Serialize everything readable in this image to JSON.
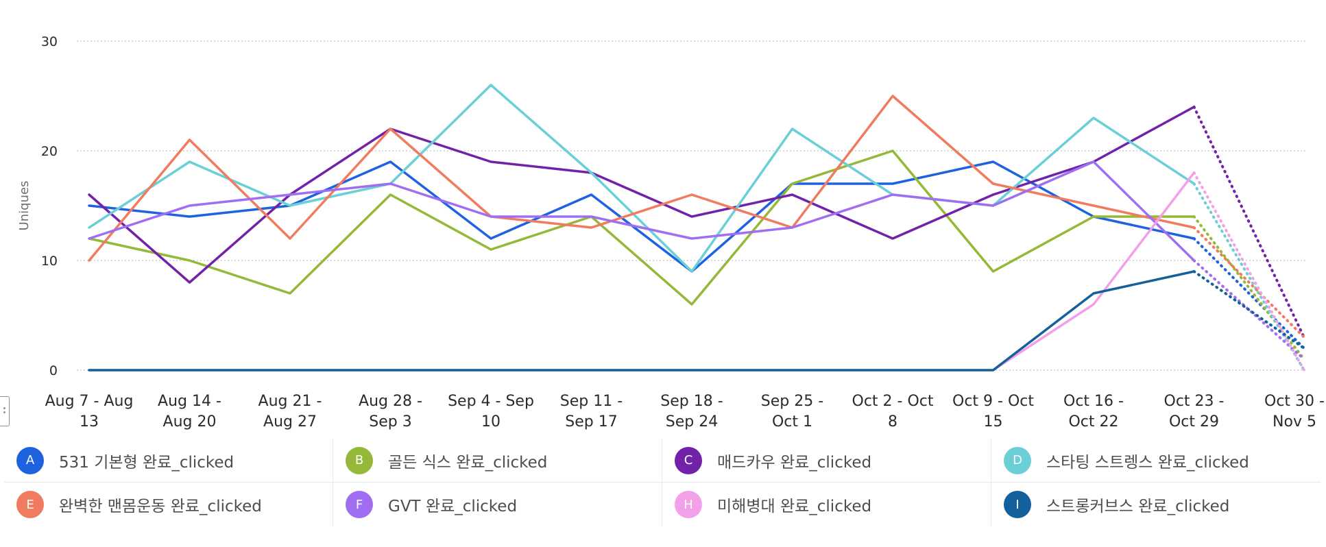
{
  "chart_data": {
    "type": "line",
    "ylabel": "Uniques",
    "ylim": [
      0,
      30
    ],
    "yticks": [
      "0",
      "10",
      "20",
      "30"
    ],
    "grid": true,
    "legend_position": "bottom",
    "categories": [
      [
        "Aug 7 - Aug",
        "13"
      ],
      [
        "Aug 14 -",
        "Aug 20"
      ],
      [
        "Aug 21 -",
        "Aug 27"
      ],
      [
        "Aug 28 -",
        "Sep 3"
      ],
      [
        "Sep 4 - Sep",
        "10"
      ],
      [
        "Sep 11 -",
        "Sep 17"
      ],
      [
        "Sep 18 -",
        "Sep 24"
      ],
      [
        "Sep 25 -",
        "Oct 1"
      ],
      [
        "Oct 2 - Oct",
        "8"
      ],
      [
        "Oct 9 - Oct",
        "15"
      ],
      [
        "Oct 16 -",
        "Oct 22"
      ],
      [
        "Oct 23 -",
        "Oct 29"
      ],
      [
        "Oct 30 -",
        "Nov 5"
      ]
    ],
    "partial_last_period": true,
    "series": [
      {
        "badge": "A",
        "name": "531 기본형 완료_clicked",
        "color": "#1f62e0",
        "values": [
          15,
          14,
          15,
          19,
          12,
          16,
          9,
          17,
          17,
          19,
          14,
          12,
          2
        ]
      },
      {
        "badge": "B",
        "name": "골든 식스 완료_clicked",
        "color": "#94b837",
        "values": [
          12,
          10,
          7,
          16,
          11,
          14,
          6,
          17,
          20,
          9,
          14,
          14,
          1
        ]
      },
      {
        "badge": "C",
        "name": "매드카우 완료_clicked",
        "color": "#7222a8",
        "values": [
          16,
          8,
          16,
          22,
          19,
          18,
          14,
          16,
          12,
          16,
          19,
          24,
          3
        ]
      },
      {
        "badge": "D",
        "name": "스타팅 스트렝스 완료_clicked",
        "color": "#6acfd6",
        "values": [
          13,
          19,
          15,
          17,
          26,
          18,
          9,
          22,
          16,
          15,
          23,
          17,
          0
        ]
      },
      {
        "badge": "E",
        "name": "완벽한 맨몸운동 완료_clicked",
        "color": "#f07b5e",
        "values": [
          10,
          21,
          12,
          22,
          14,
          13,
          16,
          13,
          25,
          17,
          15,
          13,
          3
        ]
      },
      {
        "badge": "F",
        "name": "GVT 완료_clicked",
        "color": "#a06ef0",
        "values": [
          12,
          15,
          16,
          17,
          14,
          14,
          12,
          13,
          16,
          15,
          19,
          10,
          1
        ]
      },
      {
        "badge": "H",
        "name": "미해병대 완료_clicked",
        "color": "#f2a0e8",
        "values": [
          0,
          0,
          0,
          0,
          0,
          0,
          0,
          0,
          0,
          0,
          6,
          18,
          0
        ]
      },
      {
        "badge": "I",
        "name": "스트롱커브스 완료_clicked",
        "color": "#13609a",
        "values": [
          0,
          0,
          0,
          0,
          0,
          0,
          0,
          0,
          0,
          0,
          7,
          9,
          2
        ]
      }
    ]
  }
}
